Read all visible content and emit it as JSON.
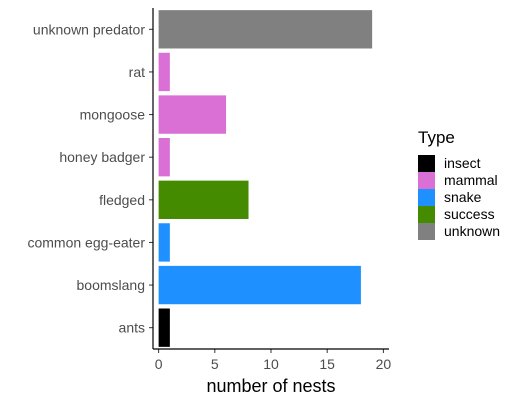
{
  "chart_data": {
    "type": "bar",
    "orientation": "horizontal",
    "categories": [
      "unknown predator",
      "rat",
      "mongoose",
      "honey badger",
      "fledged",
      "common egg-eater",
      "boomslang",
      "ants"
    ],
    "values": [
      19,
      1,
      6,
      1,
      8,
      1,
      18,
      1
    ],
    "types": [
      "unknown",
      "mammal",
      "mammal",
      "mammal",
      "success",
      "snake",
      "snake",
      "insect"
    ],
    "xlabel": "number of nests",
    "ylabel": "",
    "xlim": [
      -0.5,
      20.5
    ],
    "xticks": [
      0,
      5,
      10,
      15,
      20
    ],
    "grid": false,
    "legend": {
      "title": "Type",
      "placement": "right",
      "entries": [
        {
          "label": "insect",
          "color": "#000000"
        },
        {
          "label": "mammal",
          "color": "#da70d6"
        },
        {
          "label": "snake",
          "color": "#1e90ff"
        },
        {
          "label": "success",
          "color": "#458b00"
        },
        {
          "label": "unknown",
          "color": "#808080"
        }
      ]
    }
  }
}
